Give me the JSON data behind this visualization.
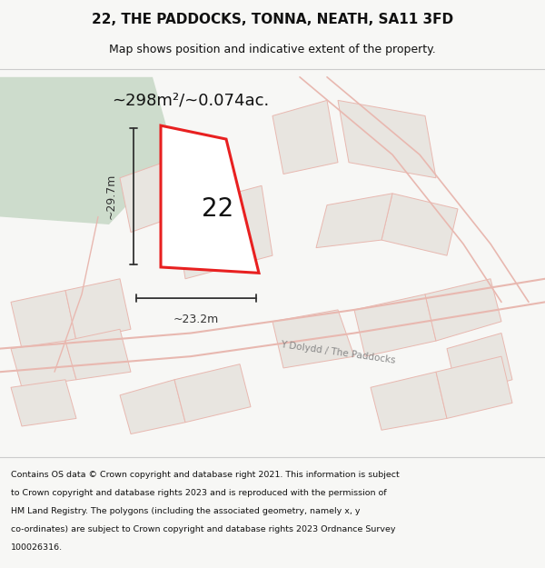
{
  "title": "22, THE PADDOCKS, TONNA, NEATH, SA11 3FD",
  "subtitle": "Map shows position and indicative extent of the property.",
  "area_text": "~298m²/~0.074ac.",
  "dim_width": "~23.2m",
  "dim_height": "~29.7m",
  "number_label": "22",
  "road_label1": "Y Dolydd / The Paddocks",
  "footer_lines": [
    "Contains OS data © Crown copyright and database right 2021. This information is subject",
    "to Crown copyright and database rights 2023 and is reproduced with the permission of",
    "HM Land Registry. The polygons (including the associated geometry, namely x, y",
    "co-ordinates) are subject to Crown copyright and database rights 2023 Ordnance Survey",
    "100026316."
  ],
  "bg_color": "#f7f7f5",
  "map_bg": "#f0eeeb",
  "green_fill": "#cddccc",
  "plot_fill": "#e8e5e0",
  "road_color": "#e8b8b0",
  "red_stroke": "#e82020",
  "dim_color": "#333333",
  "footer_color": "#111111"
}
